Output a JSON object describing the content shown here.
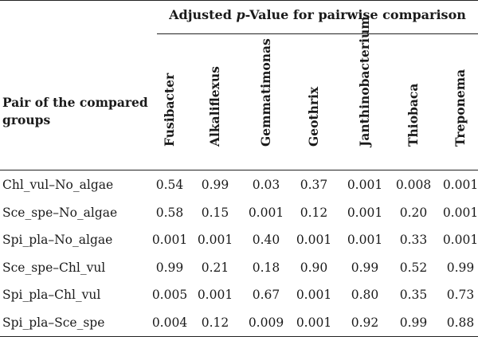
{
  "table": {
    "spanning_header_prefix": "Adjusted ",
    "spanning_header_italic": "p",
    "spanning_header_suffix": "-Value for pairwise comparison",
    "row_header": "Pair of the compared groups",
    "columns": [
      "Fusibacter",
      "Alkaliflexus",
      "Gemmatimonas",
      "Geothrix",
      "Janthinobacterium",
      "Thiobaca",
      "Treponema"
    ],
    "rows": [
      {
        "label": "Chl_vul–No_algae",
        "values": [
          "0.54",
          "0.99",
          "0.03",
          "0.37",
          "0.001",
          "0.008",
          "0.001"
        ]
      },
      {
        "label": "Sce_spe–No_algae",
        "values": [
          "0.58",
          "0.15",
          "0.001",
          "0.12",
          "0.001",
          "0.20",
          "0.001"
        ]
      },
      {
        "label": "Spi_pla–No_algae",
        "values": [
          "0.001",
          "0.001",
          "0.40",
          "0.001",
          "0.001",
          "0.33",
          "0.001"
        ]
      },
      {
        "label": "Sce_spe–Chl_vul",
        "values": [
          "0.99",
          "0.21",
          "0.18",
          "0.90",
          "0.99",
          "0.52",
          "0.99"
        ]
      },
      {
        "label": "Spi_pla–Chl_vul",
        "values": [
          "0.005",
          "0.001",
          "0.67",
          "0.001",
          "0.80",
          "0.35",
          "0.73"
        ]
      },
      {
        "label": "Spi_pla–Sce_spe",
        "values": [
          "0.004",
          "0.12",
          "0.009",
          "0.001",
          "0.92",
          "0.99",
          "0.88"
        ]
      }
    ]
  }
}
